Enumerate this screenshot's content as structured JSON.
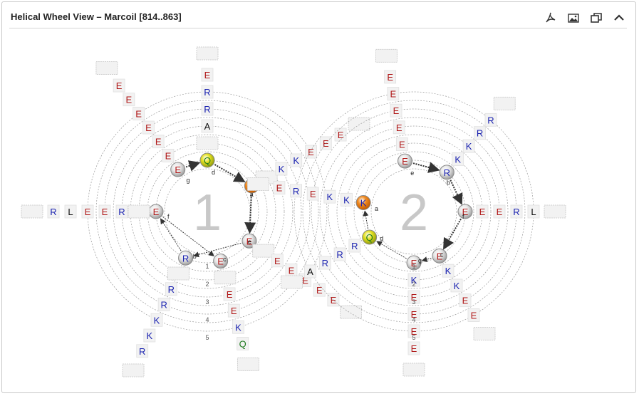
{
  "title": "Helical Wheel View – Marcoil [814..863]",
  "toolbar": {
    "icons": [
      "pdf-export-icon",
      "image-export-icon",
      "restore-window-icon",
      "collapse-icon"
    ]
  },
  "colors": {
    "charged_positive": "#1a22b0",
    "charged_negative": "#b01818",
    "polar": "#1e7a1e",
    "hydrophobic": "#111111",
    "box_fill": "#f2f2f2",
    "orb_gray": "#d6d6d6",
    "orb_orange": "#f08a20",
    "orb_yellow": "#e3e020",
    "ring_stroke": "#9a9a9a",
    "big_number": "#c8c8c8"
  },
  "wheels": [
    {
      "number": "1",
      "core": [
        {
          "letter": "E",
          "heptad": "g"
        },
        {
          "letter": "Q",
          "heptad": "d"
        },
        {
          "letter": "K",
          "heptad": "a"
        },
        {
          "letter": "E",
          "heptad": "e"
        },
        {
          "letter": "R",
          "heptad": "b"
        },
        {
          "letter": "E",
          "heptad": "f"
        },
        {
          "letter": "E",
          "heptad": "c"
        }
      ],
      "spokes": [
        [
          "E",
          "E",
          "E",
          "E",
          "E",
          "E"
        ],
        [
          "",
          "A",
          "R",
          "R",
          "E"
        ],
        [
          "",
          "K",
          "K",
          "E",
          "E",
          "E"
        ],
        [
          "",
          "E",
          "E",
          "E",
          "E",
          "E"
        ],
        [
          "",
          "R",
          "R",
          "K",
          "K",
          "R"
        ],
        [
          "",
          "R",
          "E",
          "E",
          "L",
          "R"
        ],
        [
          "",
          "E",
          "E",
          "K",
          "Q"
        ]
      ],
      "ring_labels": [
        "1",
        "2",
        "3",
        "4",
        "5"
      ]
    },
    {
      "number": "2",
      "core": [
        {
          "letter": "E",
          "heptad": "e"
        },
        {
          "letter": "R",
          "heptad": "b"
        },
        {
          "letter": "E",
          "heptad": "f"
        },
        {
          "letter": "E",
          "heptad": "c"
        },
        {
          "letter": "E",
          "heptad": "g"
        },
        {
          "letter": "Q",
          "heptad": "d"
        },
        {
          "letter": "K",
          "heptad": "a"
        }
      ],
      "spokes": [
        [
          "E",
          "E",
          "E",
          "E",
          "E"
        ],
        [
          "K",
          "K",
          "R",
          "R"
        ],
        [
          "E",
          "E",
          "R",
          "L"
        ],
        [
          "K",
          "K",
          "E",
          "E"
        ],
        [
          "K",
          "E",
          "E",
          "E",
          "E"
        ],
        [
          "R",
          "R",
          "R",
          "A"
        ],
        [
          "K",
          "K",
          "E",
          "R",
          "E"
        ]
      ],
      "ring_labels": [
        "1",
        "2",
        "3",
        "4",
        "5"
      ]
    }
  ],
  "letter_class": {
    "E": "charged_negative",
    "D": "charged_negative",
    "K": "charged_positive",
    "R": "charged_positive",
    "Q": "polar",
    "A": "hydrophobic",
    "L": "hydrophobic"
  }
}
